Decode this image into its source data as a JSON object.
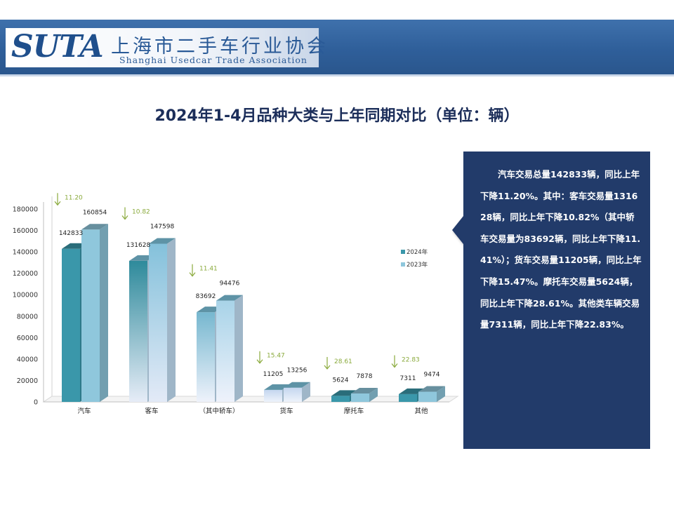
{
  "header": {
    "logo_text": "SUTA",
    "association_cn": "上海市二手车行业协会",
    "association_en": "Shanghai Usedcar Trade Association"
  },
  "colors": {
    "header_bg": "#2f5f9a",
    "callout_bg": "#233a6a",
    "series_2024": "#3a97aa",
    "series_2023": "#8fc7dc",
    "arrow": "#8aaa3c"
  },
  "chart_data": {
    "type": "bar",
    "title": "2024年1-4月品种大类与上年同期对比（单位：辆）",
    "categories": [
      "汽车",
      "客车",
      "（其中轿车）",
      "货车",
      "摩托车",
      "其他"
    ],
    "series": [
      {
        "name": "2024年",
        "values": [
          142833,
          131628,
          83692,
          11205,
          5624,
          7311
        ]
      },
      {
        "name": "2023年",
        "values": [
          160854,
          147598,
          94476,
          13256,
          7878,
          9474
        ]
      }
    ],
    "decline_pct": [
      11.2,
      10.82,
      11.41,
      15.47,
      28.61,
      22.83
    ],
    "decline_labels": [
      "11.20",
      "10.82",
      "11.41",
      "15.47",
      "28.61",
      "22.83"
    ],
    "y_ticks": [
      0,
      20000,
      40000,
      60000,
      80000,
      100000,
      120000,
      140000,
      160000,
      180000
    ],
    "ylim": [
      0,
      180000
    ],
    "legend_position": "right",
    "grid": false
  },
  "summary": {
    "text": "汽车交易总量142833辆，同比上年下降11.20%。其中：客车交易量131628辆，同比上年下降10.82%（其中轿车交易量为83692辆，同比上年下降11.41%）；货车交易量11205辆，同比上年下降15.47%。摩托车交易量5624辆，同比上年下降28.61%。其他类车辆交易量7311辆，同比上年下降22.83%。"
  }
}
